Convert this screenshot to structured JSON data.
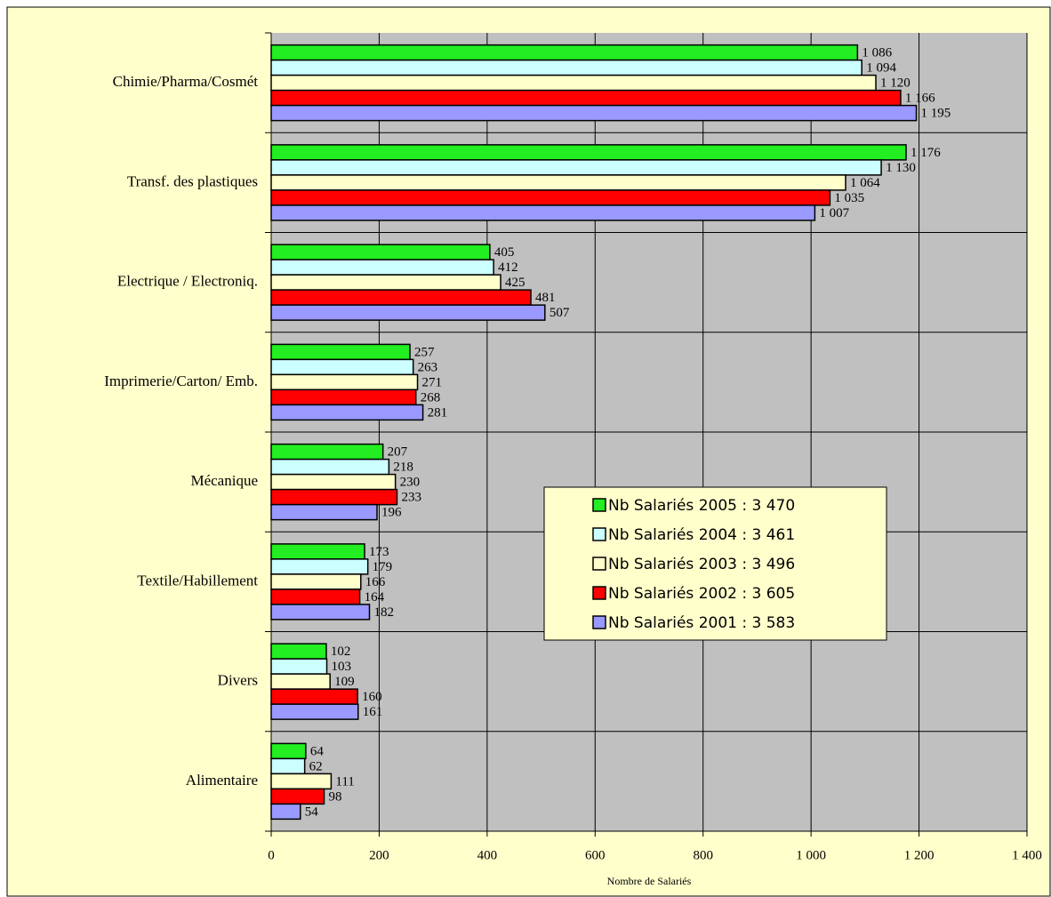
{
  "chart_data": {
    "type": "bar",
    "orientation": "horizontal",
    "xlabel": "Nombre de Salariés",
    "categories": [
      "Chimie/Pharma/Cosmét",
      "Transf. des plastiques",
      "Electrique / Electroniq.",
      "Imprimerie/Carton/ Emb.",
      "Mécanique",
      "Textile/Habillement",
      "Divers",
      "Alimentaire"
    ],
    "series": [
      {
        "name": "Nb Salariés 2005 : 3 470",
        "color": "#22ee22",
        "values": [
          1086,
          1176,
          405,
          257,
          207,
          173,
          102,
          64
        ],
        "value_labels": [
          "1 086",
          "1 176",
          "405",
          "257",
          "207",
          "173",
          "102",
          "64"
        ]
      },
      {
        "name": "Nb Salariés 2004 : 3 461",
        "color": "#ccffff",
        "values": [
          1094,
          1130,
          412,
          263,
          218,
          179,
          103,
          62
        ],
        "value_labels": [
          "1 094",
          "1 130",
          "412",
          "263",
          "218",
          "179",
          "103",
          "62"
        ]
      },
      {
        "name": "Nb Salariés 2003 : 3 496",
        "color": "#ffffcc",
        "values": [
          1120,
          1064,
          425,
          271,
          230,
          166,
          109,
          111
        ],
        "value_labels": [
          "1 120",
          "1 064",
          "425",
          "271",
          "230",
          "166",
          "109",
          "111"
        ]
      },
      {
        "name": "Nb Salariés 2002 : 3 605",
        "color": "#ff0000",
        "values": [
          1166,
          1035,
          481,
          268,
          233,
          164,
          160,
          98
        ],
        "value_labels": [
          "1 166",
          "1 035",
          "481",
          "268",
          "233",
          "164",
          "160",
          "98"
        ]
      },
      {
        "name": "Nb Salariés 2001 : 3 583",
        "color": "#9999ff",
        "values": [
          1195,
          1007,
          507,
          281,
          196,
          182,
          161,
          54
        ],
        "value_labels": [
          "1 195",
          "1 007",
          "507",
          "281",
          "196",
          "182",
          "161",
          "54"
        ]
      }
    ],
    "xlim": [
      0,
      1400
    ],
    "xticks": [
      0,
      200,
      400,
      600,
      800,
      {
        "value": 1000,
        "label": "1 000"
      },
      {
        "value": 1200,
        "label": "1 200"
      },
      {
        "value": 1400,
        "label": "1 400"
      }
    ],
    "grid": true
  }
}
